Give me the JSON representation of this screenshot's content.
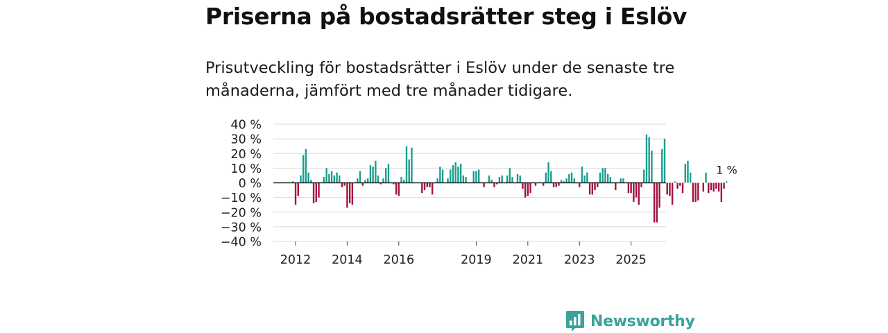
{
  "title": "Priserna på bostadsrätter steg i Eslöv",
  "subtitle": "Prisutveckling för bostadsrätter i Eslöv under de senaste tre månaderna, jämfört med tre månader tidigare.",
  "brand": {
    "name": "Newsworthy",
    "color": "#3aa39a"
  },
  "colors": {
    "positive": "#1a9e8f",
    "negative": "#a3123f",
    "grid": "#d9d9d9",
    "zero": "#222222"
  },
  "chart_data": {
    "type": "bar",
    "title": "Priserna på bostadsrätter steg i Eslöv",
    "xlabel": "",
    "ylabel": "",
    "ylim": [
      -40,
      40
    ],
    "yticks": [
      40,
      30,
      20,
      10,
      0,
      -10,
      -20,
      -30,
      -40
    ],
    "ytick_labels": [
      "40 %",
      "30 %",
      "20 %",
      "10 %",
      "0 %",
      "−10 %",
      "−20 %",
      "−30 %",
      "−40 %"
    ],
    "x_start": "2011-07",
    "xticks": [
      {
        "label": "2012",
        "index": 7
      },
      {
        "label": "2014",
        "index": 27
      },
      {
        "label": "2016",
        "index": 47
      },
      {
        "label": "2019",
        "index": 77
      },
      {
        "label": "2021",
        "index": 97
      },
      {
        "label": "2023",
        "index": 117
      },
      {
        "label": "2025",
        "index": 137
      }
    ],
    "end_label": "1 %",
    "values": [
      0,
      0,
      0,
      0,
      0,
      0,
      1,
      -15,
      -9,
      5,
      19,
      23,
      7,
      2,
      -14,
      -13,
      -10,
      0,
      4,
      10,
      6,
      8,
      5,
      7,
      5,
      -3,
      -2,
      -17,
      -14,
      -15,
      0,
      3,
      8,
      -2,
      2,
      3,
      12,
      11,
      15,
      5,
      -1,
      3,
      10,
      13,
      0,
      -1,
      -8,
      -9,
      4,
      2,
      25,
      16,
      24,
      0,
      0,
      0,
      -7,
      -5,
      -3,
      -3,
      -8,
      0,
      3,
      11,
      9,
      0,
      3,
      9,
      12,
      14,
      11,
      13,
      5,
      4,
      0,
      0,
      8,
      8,
      9,
      0,
      -3,
      0,
      5,
      2,
      -3,
      -1,
      4,
      5,
      0,
      5,
      10,
      4,
      0,
      6,
      5,
      -4,
      -10,
      -9,
      -7,
      0,
      -2,
      0,
      0,
      -2,
      7,
      14,
      8,
      -3,
      -3,
      -2,
      2,
      1,
      3,
      6,
      7,
      3,
      0,
      -3,
      11,
      5,
      7,
      -8,
      -8,
      -5,
      -3,
      7,
      10,
      10,
      6,
      4,
      0,
      -5,
      0,
      3,
      3,
      0,
      -7,
      -7,
      -13,
      -10,
      -15,
      -3,
      9,
      33,
      31,
      22,
      -27,
      -27,
      -17,
      23,
      30,
      -8,
      -9,
      -15,
      1,
      -4,
      -2,
      -7,
      13,
      15,
      7,
      -13,
      -13,
      -12,
      0,
      -6,
      7,
      -7,
      -5,
      -6,
      -4,
      -6,
      -13,
      -4,
      1
    ]
  }
}
